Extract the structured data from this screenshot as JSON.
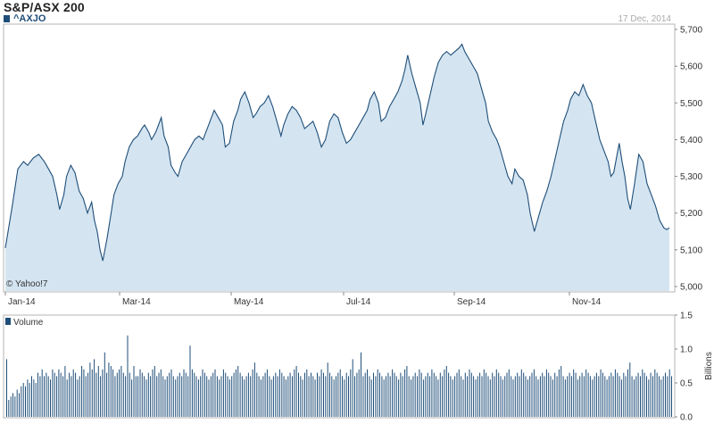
{
  "header": {
    "title": "S&P/ASX 200",
    "symbol": "^AXJO",
    "date": "17 Dec, 2014",
    "watermark": "© Yahoo!7"
  },
  "chart_data": [
    {
      "type": "area",
      "series": [
        {
          "name": "^AXJO"
        }
      ],
      "ylim": [
        5000,
        5700
      ],
      "yticks": [
        "5,700",
        "5,600",
        "5,500",
        "5,400",
        "5,300",
        "5,200",
        "5,100",
        "5,000"
      ],
      "x_tick_labels": [
        "Jan-14",
        "Mar-14",
        "May-14",
        "Jul-14",
        "Sep-14",
        "Nov-14"
      ],
      "grid": false,
      "points": [
        [
          0,
          5105
        ],
        [
          0.05,
          5220
        ],
        [
          0.09,
          5320
        ],
        [
          0.13,
          5340
        ],
        [
          0.16,
          5330
        ],
        [
          0.2,
          5350
        ],
        [
          0.24,
          5360
        ],
        [
          0.28,
          5340
        ],
        [
          0.31,
          5320
        ],
        [
          0.34,
          5300
        ],
        [
          0.37,
          5250
        ],
        [
          0.39,
          5210
        ],
        [
          0.42,
          5250
        ],
        [
          0.44,
          5300
        ],
        [
          0.47,
          5330
        ],
        [
          0.5,
          5310
        ],
        [
          0.53,
          5260
        ],
        [
          0.56,
          5240
        ],
        [
          0.59,
          5200
        ],
        [
          0.62,
          5230
        ],
        [
          0.64,
          5180
        ],
        [
          0.66,
          5150
        ],
        [
          0.68,
          5100
        ],
        [
          0.7,
          5070
        ],
        [
          0.73,
          5130
        ],
        [
          0.76,
          5200
        ],
        [
          0.78,
          5250
        ],
        [
          0.81,
          5280
        ],
        [
          0.84,
          5300
        ],
        [
          0.86,
          5340
        ],
        [
          0.89,
          5380
        ],
        [
          0.92,
          5400
        ],
        [
          0.95,
          5410
        ],
        [
          0.98,
          5430
        ],
        [
          1.0,
          5440
        ],
        [
          1.03,
          5420
        ],
        [
          1.05,
          5400
        ],
        [
          1.08,
          5420
        ],
        [
          1.1,
          5440
        ],
        [
          1.12,
          5460
        ],
        [
          1.14,
          5410
        ],
        [
          1.17,
          5380
        ],
        [
          1.19,
          5330
        ],
        [
          1.22,
          5310
        ],
        [
          1.24,
          5300
        ],
        [
          1.27,
          5340
        ],
        [
          1.3,
          5360
        ],
        [
          1.33,
          5380
        ],
        [
          1.36,
          5400
        ],
        [
          1.39,
          5410
        ],
        [
          1.42,
          5400
        ],
        [
          1.44,
          5420
        ],
        [
          1.47,
          5450
        ],
        [
          1.5,
          5480
        ],
        [
          1.53,
          5460
        ],
        [
          1.56,
          5440
        ],
        [
          1.58,
          5380
        ],
        [
          1.61,
          5390
        ],
        [
          1.64,
          5450
        ],
        [
          1.67,
          5480
        ],
        [
          1.69,
          5510
        ],
        [
          1.72,
          5530
        ],
        [
          1.75,
          5500
        ],
        [
          1.78,
          5460
        ],
        [
          1.8,
          5470
        ],
        [
          1.83,
          5490
        ],
        [
          1.86,
          5500
        ],
        [
          1.89,
          5520
        ],
        [
          1.92,
          5490
        ],
        [
          1.95,
          5450
        ],
        [
          1.98,
          5410
        ],
        [
          2.0,
          5440
        ],
        [
          2.03,
          5470
        ],
        [
          2.06,
          5490
        ],
        [
          2.09,
          5480
        ],
        [
          2.12,
          5460
        ],
        [
          2.15,
          5430
        ],
        [
          2.18,
          5440
        ],
        [
          2.21,
          5450
        ],
        [
          2.24,
          5420
        ],
        [
          2.27,
          5380
        ],
        [
          2.3,
          5400
        ],
        [
          2.33,
          5450
        ],
        [
          2.36,
          5470
        ],
        [
          2.39,
          5460
        ],
        [
          2.42,
          5420
        ],
        [
          2.45,
          5390
        ],
        [
          2.48,
          5400
        ],
        [
          2.51,
          5420
        ],
        [
          2.54,
          5440
        ],
        [
          2.57,
          5460
        ],
        [
          2.6,
          5480
        ],
        [
          2.62,
          5510
        ],
        [
          2.65,
          5530
        ],
        [
          2.68,
          5500
        ],
        [
          2.7,
          5450
        ],
        [
          2.73,
          5460
        ],
        [
          2.76,
          5490
        ],
        [
          2.79,
          5510
        ],
        [
          2.82,
          5530
        ],
        [
          2.85,
          5560
        ],
        [
          2.87,
          5590
        ],
        [
          2.89,
          5630
        ],
        [
          2.92,
          5580
        ],
        [
          2.95,
          5540
        ],
        [
          2.98,
          5500
        ],
        [
          3.0,
          5440
        ],
        [
          3.02,
          5470
        ],
        [
          3.05,
          5520
        ],
        [
          3.08,
          5570
        ],
        [
          3.11,
          5610
        ],
        [
          3.14,
          5630
        ],
        [
          3.17,
          5640
        ],
        [
          3.2,
          5630
        ],
        [
          3.23,
          5640
        ],
        [
          3.26,
          5650
        ],
        [
          3.28,
          5660
        ],
        [
          3.3,
          5640
        ],
        [
          3.33,
          5620
        ],
        [
          3.36,
          5600
        ],
        [
          3.39,
          5580
        ],
        [
          3.42,
          5540
        ],
        [
          3.45,
          5500
        ],
        [
          3.47,
          5450
        ],
        [
          3.5,
          5420
        ],
        [
          3.53,
          5400
        ],
        [
          3.55,
          5380
        ],
        [
          3.58,
          5340
        ],
        [
          3.61,
          5300
        ],
        [
          3.64,
          5280
        ],
        [
          3.66,
          5320
        ],
        [
          3.69,
          5300
        ],
        [
          3.72,
          5290
        ],
        [
          3.75,
          5250
        ],
        [
          3.77,
          5200
        ],
        [
          3.8,
          5150
        ],
        [
          3.83,
          5190
        ],
        [
          3.86,
          5230
        ],
        [
          3.89,
          5260
        ],
        [
          3.92,
          5300
        ],
        [
          3.95,
          5350
        ],
        [
          3.98,
          5400
        ],
        [
          4.01,
          5450
        ],
        [
          4.04,
          5480
        ],
        [
          4.06,
          5510
        ],
        [
          4.09,
          5530
        ],
        [
          4.12,
          5520
        ],
        [
          4.15,
          5550
        ],
        [
          4.18,
          5520
        ],
        [
          4.21,
          5500
        ],
        [
          4.24,
          5450
        ],
        [
          4.27,
          5400
        ],
        [
          4.3,
          5370
        ],
        [
          4.33,
          5340
        ],
        [
          4.35,
          5300
        ],
        [
          4.37,
          5310
        ],
        [
          4.39,
          5350
        ],
        [
          4.41,
          5390
        ],
        [
          4.43,
          5340
        ],
        [
          4.45,
          5300
        ],
        [
          4.47,
          5240
        ],
        [
          4.49,
          5210
        ],
        [
          4.52,
          5280
        ],
        [
          4.55,
          5360
        ],
        [
          4.58,
          5340
        ],
        [
          4.61,
          5280
        ],
        [
          4.64,
          5250
        ],
        [
          4.67,
          5220
        ],
        [
          4.7,
          5180
        ],
        [
          4.73,
          5160
        ],
        [
          4.75,
          5155
        ],
        [
          4.77,
          5160
        ]
      ]
    },
    {
      "type": "bar",
      "series": [
        {
          "name": "Volume"
        }
      ],
      "ylabel": "Billions",
      "ylim": [
        0,
        1.5
      ],
      "yticks": [
        "1.5",
        "1.0",
        "0.5",
        "0.0"
      ],
      "grid": false,
      "values": [
        0.85,
        0.25,
        0.3,
        0.35,
        0.3,
        0.4,
        0.35,
        0.45,
        0.5,
        0.45,
        0.55,
        0.5,
        0.6,
        0.55,
        0.5,
        0.65,
        0.6,
        0.7,
        0.6,
        0.65,
        0.6,
        0.55,
        0.7,
        0.65,
        0.6,
        0.7,
        0.65,
        0.6,
        0.75,
        0.55,
        0.65,
        0.6,
        0.7,
        0.65,
        0.55,
        0.6,
        0.75,
        0.7,
        0.6,
        0.65,
        0.8,
        0.7,
        0.85,
        0.65,
        0.75,
        0.6,
        0.7,
        0.95,
        0.65,
        0.8,
        0.75,
        0.7,
        0.6,
        0.65,
        0.7,
        0.75,
        0.65,
        0.6,
        1.2,
        0.65,
        0.55,
        0.75,
        0.6,
        0.6,
        0.7,
        0.65,
        0.6,
        0.55,
        0.65,
        0.6,
        0.7,
        0.75,
        0.6,
        0.65,
        0.7,
        0.6,
        0.55,
        0.6,
        0.65,
        0.7,
        0.6,
        0.55,
        0.6,
        0.65,
        0.6,
        0.7,
        0.65,
        0.6,
        1.05,
        0.7,
        0.65,
        0.6,
        0.55,
        0.6,
        0.7,
        0.65,
        0.6,
        0.55,
        0.6,
        0.65,
        0.7,
        0.6,
        0.55,
        0.6,
        0.7,
        0.65,
        0.6,
        0.55,
        0.6,
        0.65,
        0.7,
        0.75,
        0.65,
        0.6,
        0.55,
        0.6,
        0.65,
        0.6,
        0.7,
        0.8,
        0.65,
        0.6,
        0.55,
        0.6,
        0.65,
        0.7,
        0.6,
        0.55,
        0.6,
        0.65,
        0.6,
        0.7,
        0.65,
        0.6,
        0.55,
        0.6,
        0.65,
        0.6,
        0.7,
        0.75,
        0.65,
        0.6,
        0.55,
        0.65,
        0.7,
        0.6,
        0.65,
        0.6,
        0.55,
        0.65,
        0.6,
        0.7,
        0.65,
        0.6,
        0.8,
        0.65,
        0.6,
        0.55,
        0.6,
        0.65,
        0.7,
        0.6,
        0.55,
        0.65,
        0.6,
        0.7,
        0.85,
        0.6,
        0.65,
        0.7,
        0.95,
        0.6,
        0.65,
        0.7,
        0.6,
        0.55,
        0.65,
        0.6,
        0.7,
        0.65,
        0.6,
        0.55,
        0.6,
        0.65,
        0.6,
        0.7,
        0.65,
        0.6,
        0.55,
        0.65,
        0.6,
        0.7,
        0.75,
        0.6,
        0.55,
        0.6,
        0.65,
        0.6,
        0.7,
        0.65,
        0.55,
        0.6,
        0.65,
        0.6,
        0.7,
        0.65,
        0.6,
        0.55,
        0.65,
        0.6,
        0.7,
        0.75,
        0.65,
        0.6,
        0.55,
        0.6,
        0.65,
        0.7,
        0.6,
        0.55,
        0.65,
        0.6,
        0.7,
        0.65,
        0.6,
        0.55,
        0.6,
        0.65,
        0.6,
        0.7,
        0.65,
        0.6,
        0.55,
        0.65,
        0.6,
        0.7,
        0.65,
        0.6,
        0.55,
        0.6,
        0.65,
        0.7,
        0.6,
        0.55,
        0.6,
        0.65,
        0.6,
        0.7,
        0.65,
        0.6,
        0.55,
        0.6,
        0.65,
        0.7,
        0.6,
        0.55,
        0.6,
        0.65,
        0.6,
        0.7,
        0.65,
        0.6,
        0.55,
        0.65,
        0.6,
        0.7,
        0.75,
        0.6,
        0.55,
        0.6,
        0.65,
        0.6,
        0.7,
        0.65,
        0.55,
        0.6,
        0.65,
        0.6,
        0.7,
        0.65,
        0.6,
        0.55,
        0.6,
        0.65,
        0.6,
        0.7,
        0.65,
        0.6,
        0.55,
        0.6,
        0.65,
        0.6,
        0.7,
        0.65,
        0.6,
        0.55,
        0.65,
        0.6,
        0.7,
        0.8,
        0.6,
        0.55,
        0.6,
        0.65,
        0.6,
        0.7,
        0.65,
        0.6,
        0.55,
        0.65,
        0.6,
        0.7,
        0.65,
        0.6,
        0.55,
        0.6,
        0.65,
        0.6,
        0.7,
        0.6
      ]
    }
  ],
  "colors": {
    "line": "#1f4e79",
    "fill": "#d4e5f1",
    "frame": "#b5b5b5",
    "volume_bar": "#1f4e79"
  }
}
